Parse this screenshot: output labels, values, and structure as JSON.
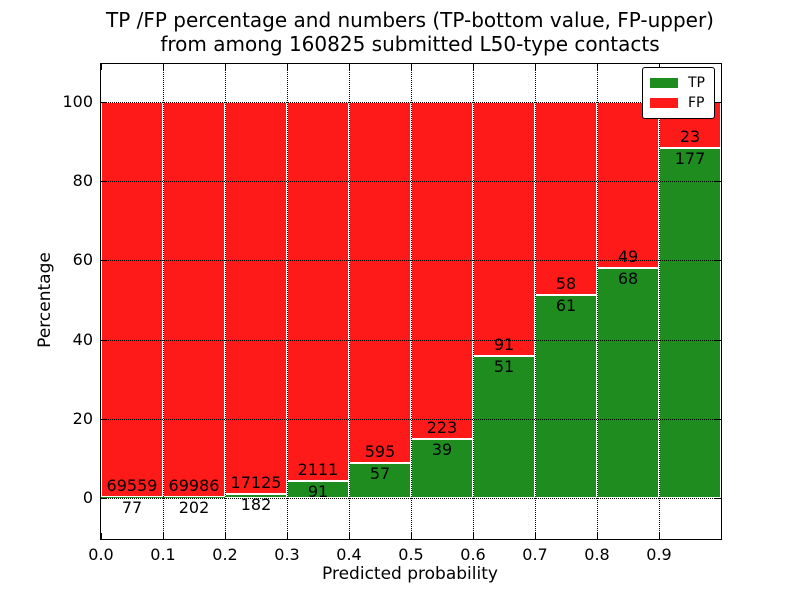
{
  "chart_data": {
    "type": "bar",
    "stacked": true,
    "normalized_to_percent": true,
    "title_lines": [
      "TP /FP percentage and numbers (TP-bottom value, FP-upper)",
      "from among 160825 submitted L50-type contacts"
    ],
    "total_submitted": 160825,
    "xlabel": "Predicted probability",
    "ylabel": "Percentage",
    "categories": [
      "0.0-0.1",
      "0.1-0.2",
      "0.2-0.3",
      "0.3-0.4",
      "0.4-0.5",
      "0.5-0.6",
      "0.6-0.7",
      "0.7-0.8",
      "0.8-0.9",
      "0.9-1.0"
    ],
    "series": [
      {
        "name": "TP",
        "color": "#1e8c1e",
        "position": "bottom",
        "counts": [
          77,
          202,
          182,
          91,
          57,
          39,
          51,
          61,
          68,
          177
        ],
        "percent": [
          0.11,
          0.29,
          1.05,
          4.13,
          8.74,
          14.89,
          35.92,
          51.26,
          58.12,
          88.5
        ]
      },
      {
        "name": "FP",
        "color": "#ff1a1a",
        "position": "top",
        "counts": [
          69559,
          69986,
          17125,
          2111,
          595,
          223,
          91,
          58,
          49,
          23
        ],
        "percent": [
          99.89,
          99.71,
          98.95,
          95.87,
          91.26,
          85.11,
          64.08,
          48.74,
          41.88,
          11.5
        ]
      }
    ],
    "xlim": [
      0.0,
      1.0
    ],
    "ylim": [
      -10.4,
      109.6
    ],
    "xtick_values": [
      0.0,
      0.1,
      0.2,
      0.3,
      0.4,
      0.5,
      0.6,
      0.7,
      0.8,
      0.9
    ],
    "xtick_labels": [
      "0.0",
      "0.1",
      "0.2",
      "0.3",
      "0.4",
      "0.5",
      "0.6",
      "0.7",
      "0.8",
      "0.9"
    ],
    "ytick_values": [
      0,
      20,
      40,
      60,
      80,
      100
    ],
    "ytick_labels": [
      "0",
      "20",
      "40",
      "60",
      "80",
      "100"
    ],
    "grid": {
      "style": "dotted",
      "color": "#000000",
      "on": true
    },
    "bar_edge_color": "#ffffff",
    "legend_position": "upper right"
  }
}
